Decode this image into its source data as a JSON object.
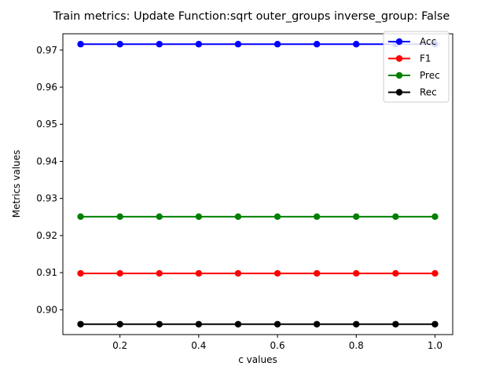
{
  "chart_data": {
    "type": "line",
    "title": "Train metrics: Update Function:sqrt outer_groups inverse_group: False",
    "xlabel": "c values",
    "ylabel": "Metrics values",
    "x": [
      0.1,
      0.2,
      0.3,
      0.4,
      0.5,
      0.6,
      0.7,
      0.8,
      0.9,
      1.0
    ],
    "xlim": [
      0.055,
      1.045
    ],
    "ylim": [
      0.8933,
      0.9744
    ],
    "xticks": [
      0.2,
      0.4,
      0.6,
      0.8,
      1.0
    ],
    "xtick_labels": [
      "0.2",
      "0.4",
      "0.6",
      "0.8",
      "1.0"
    ],
    "yticks": [
      0.9,
      0.91,
      0.92,
      0.93,
      0.94,
      0.95,
      0.96,
      0.97
    ],
    "ytick_labels": [
      "0.90",
      "0.91",
      "0.92",
      "0.93",
      "0.94",
      "0.95",
      "0.96",
      "0.97"
    ],
    "grid": false,
    "legend_position": "top-right",
    "series": [
      {
        "name": "Acc",
        "color": "#0000ff",
        "values": [
          0.9716,
          0.9716,
          0.9716,
          0.9716,
          0.9716,
          0.9716,
          0.9716,
          0.9716,
          0.9716,
          0.9716
        ]
      },
      {
        "name": "F1",
        "color": "#ff0000",
        "values": [
          0.9098,
          0.9098,
          0.9098,
          0.9098,
          0.9098,
          0.9098,
          0.9098,
          0.9098,
          0.9098,
          0.9098
        ]
      },
      {
        "name": "Prec",
        "color": "#008000",
        "values": [
          0.9251,
          0.9251,
          0.9251,
          0.9251,
          0.9251,
          0.9251,
          0.9251,
          0.9251,
          0.9251,
          0.9251
        ]
      },
      {
        "name": "Rec",
        "color": "#000000",
        "values": [
          0.8961,
          0.8961,
          0.8961,
          0.8961,
          0.8961,
          0.8961,
          0.8961,
          0.8961,
          0.8961,
          0.8961
        ]
      }
    ]
  }
}
